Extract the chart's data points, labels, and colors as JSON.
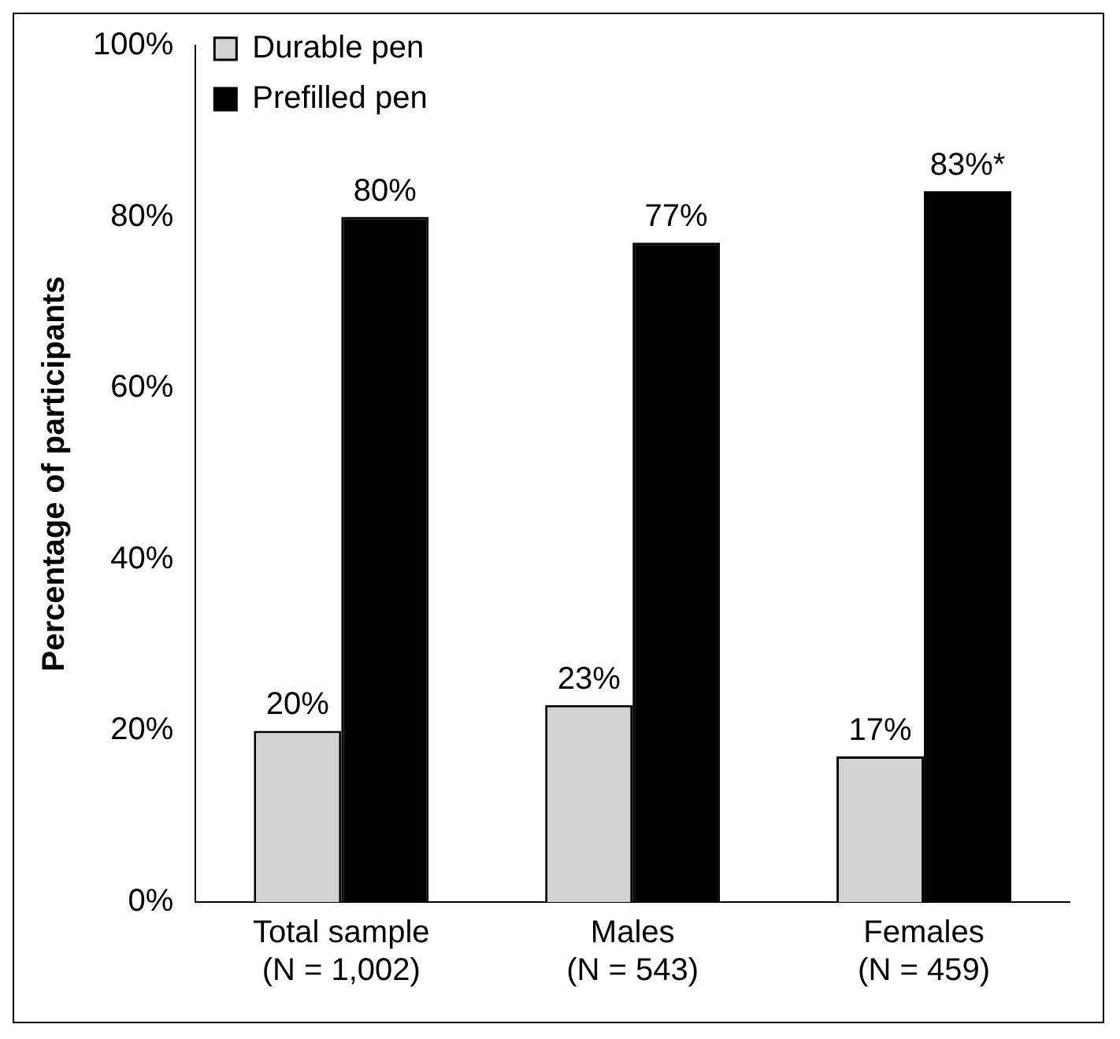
{
  "chart_data": {
    "type": "bar",
    "ylabel": "Percentage of participants",
    "categories": [
      "Total sample\n(N = 1,002)",
      "Males\n(N = 543)",
      "Females\n(N = 459)"
    ],
    "series": [
      {
        "name": "Durable pen",
        "color": "#d3d3d3",
        "values": [
          20,
          23,
          17
        ],
        "value_labels": [
          "20%",
          "23%",
          "17%"
        ]
      },
      {
        "name": "Prefilled pen",
        "color": "#000000",
        "values": [
          80,
          77,
          83
        ],
        "value_labels": [
          "80%",
          "77%",
          "83%*"
        ]
      }
    ],
    "ylim": [
      0,
      100
    ],
    "yticks": [
      {
        "value": 0,
        "label": "0%"
      },
      {
        "value": 20,
        "label": "20%"
      },
      {
        "value": 40,
        "label": "40%"
      },
      {
        "value": 60,
        "label": "60%"
      },
      {
        "value": 80,
        "label": "80%"
      },
      {
        "value": 100,
        "label": "100%"
      }
    ],
    "grid": false,
    "legend": "top left"
  }
}
